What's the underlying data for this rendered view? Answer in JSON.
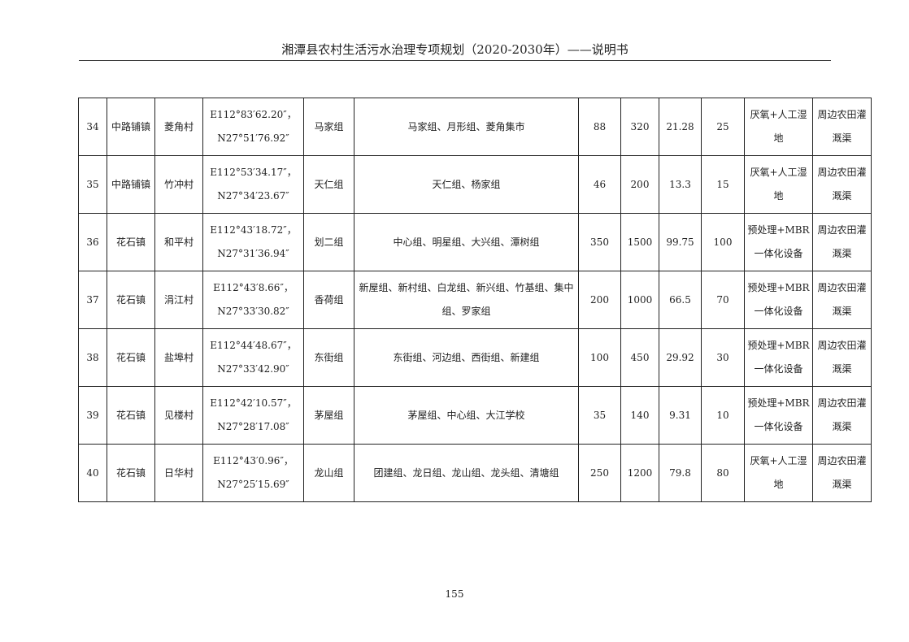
{
  "header": {
    "title": "湘潭县农村生活污水治理专项规划（2020-2030年）——说明书"
  },
  "rows": [
    [
      "34",
      "中路铺镇",
      "菱角村",
      "E112°83′62.20″，",
      "N27°51′76.92″",
      "马家组",
      "马家组、月形组、菱角集市",
      "88",
      "320",
      "21.28",
      "25",
      "厌氧+人工湿地",
      "周边农田灌溉渠"
    ],
    [
      "35",
      "中路铺镇",
      "竹冲村",
      "E112°53′34.17″，",
      "N27°34′23.67″",
      "天仁组",
      "天仁组、杨家组",
      "46",
      "200",
      "13.3",
      "15",
      "厌氧+人工湿地",
      "周边农田灌溉渠"
    ],
    [
      "36",
      "花石镇",
      "和平村",
      "E112°43′18.72″，",
      "N27°31′36.94″",
      "划二组",
      "中心组、明星组、大兴组、潭树组",
      "350",
      "1500",
      "99.75",
      "100",
      "预处理+MBR一体化设备",
      "周边农田灌溉渠"
    ],
    [
      "37",
      "花石镇",
      "涓江村",
      "E112°43′8.66″，",
      "N27°33′30.82″",
      "香荷组",
      "新屋组、新村组、白龙组、新兴组、竹基组、集中组、罗家组",
      "200",
      "1000",
      "66.5",
      "70",
      "预处理+MBR一体化设备",
      "周边农田灌溉渠"
    ],
    [
      "38",
      "花石镇",
      "盐埠村",
      "E112°44′48.67″，",
      "N27°33′42.90″",
      "东街组",
      "东街组、河边组、西街组、新建组",
      "100",
      "450",
      "29.92",
      "30",
      "预处理+MBR一体化设备",
      "周边农田灌溉渠"
    ],
    [
      "39",
      "花石镇",
      "见楼村",
      "E112°42′10.57″，",
      "N27°28′17.08″",
      "茅屋组",
      "茅屋组、中心组、大江学校",
      "35",
      "140",
      "9.31",
      "10",
      "预处理+MBR一体化设备",
      "周边农田灌溉渠"
    ],
    [
      "40",
      "花石镇",
      "日华村",
      "E112°43′0.96″，",
      "N27°25′15.69″",
      "龙山组",
      "团建组、龙日组、龙山组、龙头组、清塘组",
      "250",
      "1200",
      "79.8",
      "80",
      "厌氧+人工湿地",
      "周边农田灌溉渠"
    ]
  ],
  "footer": {
    "page_number": "155"
  }
}
